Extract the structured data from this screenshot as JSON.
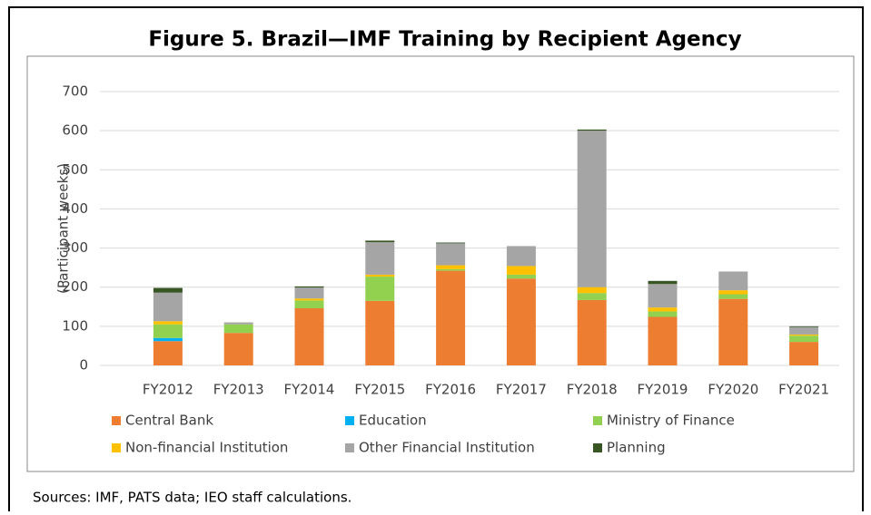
{
  "chart_data": {
    "type": "stacked_bar",
    "title": "Figure 5. Brazil—IMF Training by Recipient Agency",
    "y_label": "(Participant weeks)",
    "source": "Sources: IMF, PATS data; IEO staff calculations.",
    "categories": [
      "FY2012",
      "FY2013",
      "FY2014",
      "FY2015",
      "FY2016",
      "FY2017",
      "FY2018",
      "FY2019",
      "FY2020",
      "FY2021"
    ],
    "series": [
      {
        "name": "Central Bank",
        "color": "#ED7D31",
        "values": [
          62,
          83,
          146,
          165,
          242,
          222,
          167,
          124,
          170,
          60
        ]
      },
      {
        "name": "Education",
        "color": "#00B0F0",
        "values": [
          8,
          0,
          0,
          0,
          0,
          0,
          0,
          0,
          0,
          0
        ]
      },
      {
        "name": "Ministry of Finance",
        "color": "#92D050",
        "values": [
          35,
          22,
          20,
          62,
          4,
          10,
          18,
          14,
          12,
          16
        ]
      },
      {
        "name": "Non-financial Institution",
        "color": "#FFC000",
        "values": [
          8,
          0,
          5,
          5,
          10,
          22,
          15,
          10,
          10,
          3
        ]
      },
      {
        "name": "Other Financial Institution",
        "color": "#A5A5A5",
        "values": [
          73,
          5,
          28,
          83,
          56,
          51,
          400,
          60,
          48,
          19
        ]
      },
      {
        "name": "Planning",
        "color": "#375623",
        "values": [
          12,
          0,
          3,
          4,
          2,
          0,
          3,
          8,
          0,
          2
        ]
      }
    ],
    "ylim": [
      0,
      700
    ],
    "yticks": [
      0,
      100,
      200,
      300,
      400,
      500,
      600,
      700
    ],
    "grid": true
  }
}
